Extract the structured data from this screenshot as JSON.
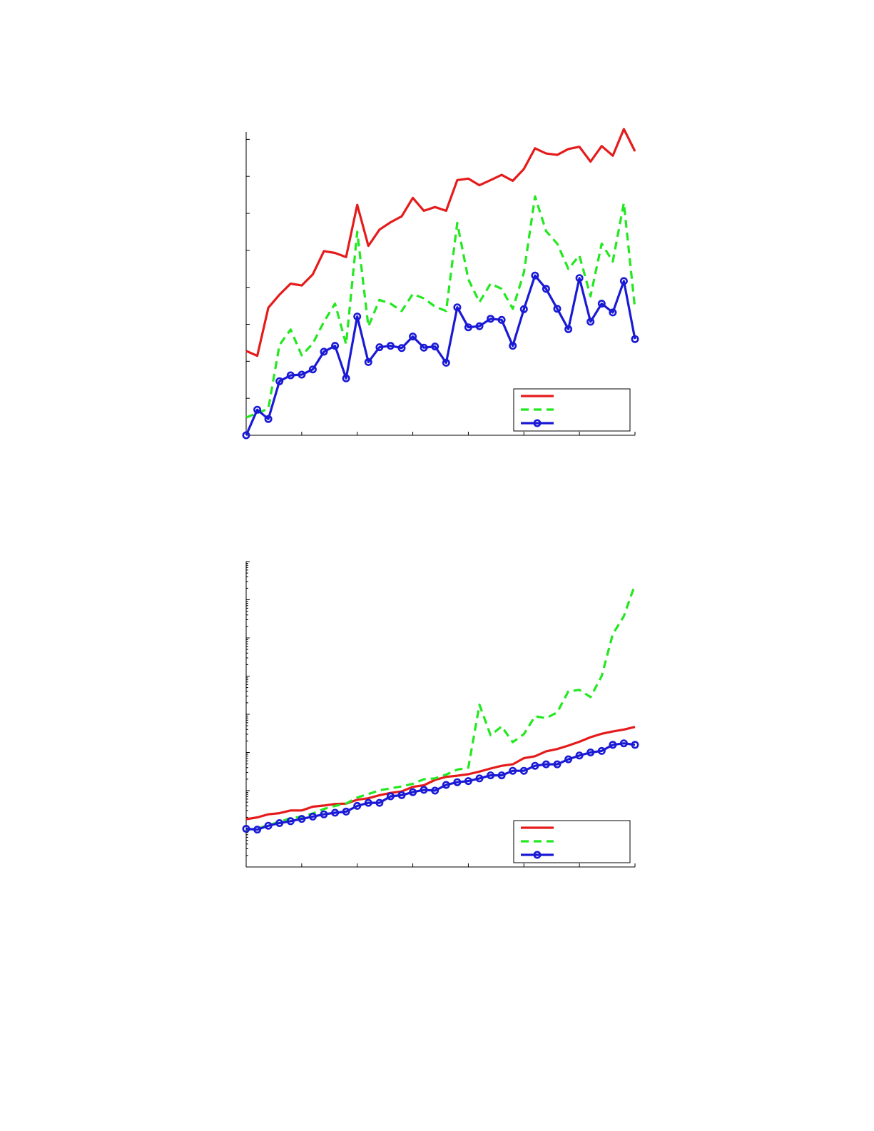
{
  "colors": {
    "series_1": "#e51b1b",
    "series_2": "#22e81f",
    "series_3": "#1a1ad6"
  },
  "chart_data": [
    {
      "type": "line",
      "title": "",
      "xlabel": "",
      "ylabel": "",
      "x": [
        1,
        2,
        3,
        4,
        5,
        6,
        7,
        8,
        9,
        10,
        11,
        12,
        13,
        14,
        15,
        16,
        17,
        18,
        19,
        20,
        21,
        22,
        23,
        24,
        25,
        26,
        27,
        28,
        29,
        30,
        31,
        32,
        33,
        34,
        35,
        36
      ],
      "xlim": [
        1,
        36
      ],
      "ylim": [
        0,
        8.2
      ],
      "yscale": "linear",
      "grid": false,
      "legend": "bottom-right",
      "series": [
        {
          "name": "",
          "style": "solid",
          "marker": "none",
          "values": [
            2.28,
            2.15,
            3.45,
            3.8,
            4.1,
            4.05,
            4.35,
            4.98,
            4.93,
            4.82,
            6.23,
            5.12,
            5.56,
            5.76,
            5.92,
            6.42,
            6.07,
            6.17,
            6.07,
            6.9,
            6.94,
            6.76,
            6.9,
            7.04,
            6.88,
            7.2,
            7.76,
            7.62,
            7.58,
            7.74,
            7.8,
            7.4,
            7.82,
            7.56,
            8.28,
            7.68
          ]
        },
        {
          "name": "",
          "style": "dashed",
          "marker": "none",
          "values": [
            0.48,
            0.6,
            0.72,
            2.44,
            2.86,
            2.16,
            2.48,
            3.07,
            3.56,
            2.46,
            5.5,
            2.94,
            3.66,
            3.56,
            3.36,
            3.82,
            3.7,
            3.48,
            3.36,
            5.74,
            4.22,
            3.6,
            4.1,
            3.96,
            3.42,
            4.4,
            6.46,
            5.52,
            5.18,
            4.5,
            4.86,
            3.76,
            5.18,
            4.7,
            6.28,
            3.42
          ]
        },
        {
          "name": "",
          "style": "solid",
          "marker": "circle",
          "values": [
            0.0,
            0.69,
            0.44,
            1.46,
            1.62,
            1.64,
            1.78,
            2.26,
            2.42,
            1.54,
            3.21,
            1.98,
            2.38,
            2.42,
            2.36,
            2.67,
            2.37,
            2.4,
            1.96,
            3.46,
            2.92,
            2.95,
            3.15,
            3.12,
            2.42,
            3.41,
            4.32,
            3.96,
            3.42,
            2.87,
            4.25,
            3.07,
            3.56,
            3.32,
            4.17,
            2.6
          ]
        }
      ]
    },
    {
      "type": "line",
      "title": "",
      "xlabel": "",
      "ylabel": "",
      "x": [
        1,
        2,
        3,
        4,
        5,
        6,
        7,
        8,
        9,
        10,
        11,
        12,
        13,
        14,
        15,
        16,
        17,
        18,
        19,
        20,
        21,
        22,
        23,
        24,
        25,
        26,
        27,
        28,
        29,
        30,
        31,
        32,
        33,
        34,
        35,
        36
      ],
      "xlim": [
        1,
        36
      ],
      "ylim": [
        -8.0,
        0.0
      ],
      "yscale": "log10",
      "grid": false,
      "legend": "bottom-right",
      "series": [
        {
          "name": "",
          "style": "solid",
          "marker": "none",
          "values": [
            -6.75,
            -6.7,
            -6.62,
            -6.59,
            -6.52,
            -6.52,
            -6.42,
            -6.39,
            -6.35,
            -6.34,
            -6.24,
            -6.2,
            -6.12,
            -6.06,
            -6.02,
            -5.9,
            -5.86,
            -5.72,
            -5.64,
            -5.61,
            -5.57,
            -5.5,
            -5.42,
            -5.35,
            -5.31,
            -5.15,
            -5.1,
            -4.97,
            -4.91,
            -4.82,
            -4.72,
            -4.6,
            -4.51,
            -4.45,
            -4.4,
            -4.33
          ]
        },
        {
          "name": "",
          "style": "dashed",
          "marker": "none",
          "values": [
            -7.02,
            -7.0,
            -6.9,
            -6.82,
            -6.72,
            -6.68,
            -6.6,
            -6.48,
            -6.4,
            -6.34,
            -6.18,
            -6.09,
            -5.99,
            -5.94,
            -5.89,
            -5.82,
            -5.7,
            -5.68,
            -5.58,
            -5.45,
            -5.4,
            -3.75,
            -4.55,
            -4.32,
            -4.73,
            -4.52,
            -4.05,
            -4.1,
            -3.95,
            -3.4,
            -3.36,
            -3.55,
            -3.0,
            -1.9,
            -1.43,
            -0.6
          ]
        },
        {
          "name": "",
          "style": "solid",
          "marker": "circle",
          "values": [
            -7.0,
            -7.02,
            -6.92,
            -6.85,
            -6.8,
            -6.74,
            -6.68,
            -6.62,
            -6.58,
            -6.55,
            -6.4,
            -6.32,
            -6.32,
            -6.15,
            -6.12,
            -6.04,
            -5.98,
            -6.0,
            -5.85,
            -5.78,
            -5.75,
            -5.68,
            -5.6,
            -5.6,
            -5.48,
            -5.48,
            -5.35,
            -5.31,
            -5.31,
            -5.18,
            -5.08,
            -5.0,
            -4.96,
            -4.8,
            -4.76,
            -4.8
          ]
        }
      ]
    }
  ]
}
